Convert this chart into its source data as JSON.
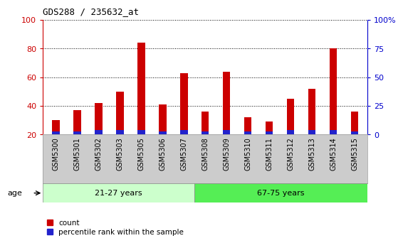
{
  "title": "GDS288 / 235632_at",
  "categories": [
    "GSM5300",
    "GSM5301",
    "GSM5302",
    "GSM5303",
    "GSM5305",
    "GSM5306",
    "GSM5307",
    "GSM5308",
    "GSM5309",
    "GSM5310",
    "GSM5311",
    "GSM5312",
    "GSM5313",
    "GSM5314",
    "GSM5315"
  ],
  "count_values": [
    30,
    37,
    42,
    50,
    84,
    41,
    63,
    36,
    64,
    32,
    29,
    45,
    52,
    80,
    36
  ],
  "percentile_values": [
    2,
    2,
    3,
    3,
    3,
    2,
    3,
    2,
    3,
    2,
    2,
    3,
    3,
    3,
    2
  ],
  "bar_base": 20,
  "ylim": [
    20,
    100
  ],
  "y2lim": [
    0,
    100
  ],
  "yticks": [
    20,
    40,
    60,
    80,
    100
  ],
  "y2ticks": [
    0,
    25,
    50,
    75,
    100
  ],
  "y2ticklabels": [
    "0",
    "25",
    "50",
    "75",
    "100%"
  ],
  "group1_label": "21-27 years",
  "group2_label": "67-75 years",
  "group1_count": 7,
  "group2_count": 8,
  "age_label": "age",
  "legend_count_label": "count",
  "legend_pct_label": "percentile rank within the sample",
  "bar_color_red": "#CC0000",
  "bar_color_blue": "#2222CC",
  "group1_bg": "#CCFFCC",
  "group2_bg": "#55EE55",
  "xlabel_bg": "#CCCCCC",
  "title_color": "#000000",
  "left_axis_color": "#CC0000",
  "right_axis_color": "#0000CC",
  "grid_color": "#000000",
  "bar_width": 0.35,
  "background_color": "#FFFFFF"
}
